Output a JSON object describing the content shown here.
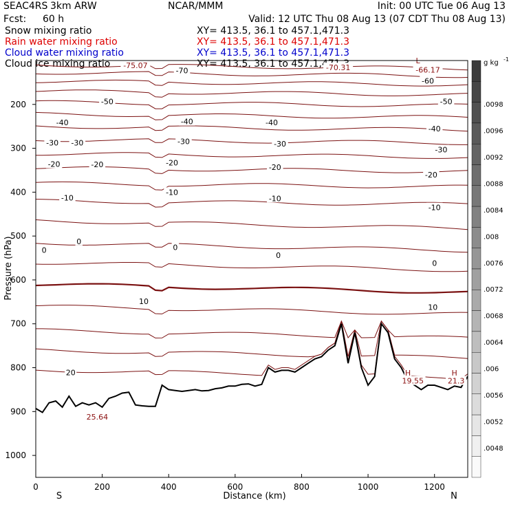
{
  "header": {
    "project": "SEAC4RS",
    "model": "3km ARW",
    "org": "NCAR/MMM",
    "init": "Init: 00 UTC Tue 06 Aug 13",
    "fcst_label": "Fcst:",
    "fcst_value": "60 h",
    "valid": "Valid: 12 UTC Thu 08 Aug 13 (07 CDT Thu 08 Aug 13)"
  },
  "fields": [
    {
      "label": "Snow mixing ratio",
      "xy": "XY= 413.5, 36.1 to 457.1,471.3",
      "color": "#000000"
    },
    {
      "label": "Rain water mixing ratio",
      "xy": "XY= 413.5, 36.1 to 457.1,471.3",
      "color": "#dd0000"
    },
    {
      "label": "Cloud water mixing ratio",
      "xy": "XY= 413.5, 36.1 to 457.1,471.3",
      "color": "#0000cc"
    },
    {
      "label": "Cloud ice mixing ratio",
      "xy": "XY= 413.5, 36.1 to 457.1,471.3",
      "color": "#000000"
    }
  ],
  "colors": {
    "contour": "#7a1010",
    "terrain": "#000000",
    "accent_red": "#dd0000",
    "accent_blue": "#0000cc"
  },
  "chart_data": {
    "type": "line",
    "title": "",
    "xlabel": "Distance (km)",
    "ylabel": "Pressure (hPa)",
    "xlim": [
      0,
      1300
    ],
    "ylim": [
      1050,
      100
    ],
    "x_ticks": [
      0,
      200,
      400,
      600,
      800,
      1000,
      1200
    ],
    "y_ticks": [
      200,
      300,
      400,
      500,
      600,
      700,
      800,
      900,
      1000
    ],
    "end_labels": {
      "left": "S",
      "right": "N"
    },
    "contour_labels": [
      {
        "text": "-75.07",
        "x": 300,
        "y": 111
      },
      {
        "text": "-70",
        "x": 440,
        "y": 123
      },
      {
        "text": "-70.31",
        "x": 910,
        "y": 116
      },
      {
        "text": "-66.17",
        "x": 1180,
        "y": 121
      },
      {
        "text": "-60",
        "x": 1180,
        "y": 146
      },
      {
        "text": "-50",
        "x": 215,
        "y": 193
      },
      {
        "text": "-50",
        "x": 1235,
        "y": 193
      },
      {
        "text": "-40",
        "x": 80,
        "y": 241
      },
      {
        "text": "-40",
        "x": 455,
        "y": 239
      },
      {
        "text": "-40",
        "x": 710,
        "y": 241
      },
      {
        "text": "-40",
        "x": 1200,
        "y": 255
      },
      {
        "text": "-30",
        "x": 50,
        "y": 287
      },
      {
        "text": "-30",
        "x": 125,
        "y": 287
      },
      {
        "text": "-30",
        "x": 445,
        "y": 284
      },
      {
        "text": "-30",
        "x": 735,
        "y": 290
      },
      {
        "text": "-30",
        "x": 1220,
        "y": 303
      },
      {
        "text": "-20",
        "x": 55,
        "y": 336
      },
      {
        "text": "-20",
        "x": 185,
        "y": 337
      },
      {
        "text": "-20",
        "x": 410,
        "y": 333
      },
      {
        "text": "-20",
        "x": 720,
        "y": 343
      },
      {
        "text": "-20",
        "x": 1190,
        "y": 360
      },
      {
        "text": "-10",
        "x": 95,
        "y": 413
      },
      {
        "text": "-10",
        "x": 410,
        "y": 400
      },
      {
        "text": "-10",
        "x": 720,
        "y": 414
      },
      {
        "text": "-10",
        "x": 1200,
        "y": 435
      },
      {
        "text": "0",
        "x": 25,
        "y": 532
      },
      {
        "text": "0",
        "x": 130,
        "y": 512
      },
      {
        "text": "0",
        "x": 420,
        "y": 526
      },
      {
        "text": "0",
        "x": 730,
        "y": 544
      },
      {
        "text": "0",
        "x": 1200,
        "y": 562
      },
      {
        "text": "10",
        "x": 325,
        "y": 649
      },
      {
        "text": "10",
        "x": 1195,
        "y": 662
      },
      {
        "text": "20",
        "x": 105,
        "y": 811
      },
      {
        "text": "25.64",
        "x": 185,
        "y": 912
      },
      {
        "text": "19.55",
        "x": 1135,
        "y": 830
      },
      {
        "text": "21.3",
        "x": 1265,
        "y": 830
      },
      {
        "text": "H",
        "x": 1120,
        "y": 812
      },
      {
        "text": "H",
        "x": 1260,
        "y": 812
      },
      {
        "text": "L",
        "x": 1150,
        "y": 100
      }
    ],
    "series": [
      {
        "x": [
          0,
          20,
          40,
          60,
          80,
          100,
          120,
          140,
          160,
          180,
          200,
          220,
          240,
          260,
          280,
          300,
          320,
          340,
          360,
          380,
          400,
          420,
          440,
          460,
          480,
          500,
          520,
          540,
          560,
          580,
          600,
          620,
          640,
          660,
          680,
          700,
          720,
          740,
          760,
          780,
          800,
          820,
          840,
          860,
          880,
          900,
          920,
          940,
          960,
          980,
          1000,
          1020,
          1040,
          1060,
          1080,
          1100,
          1120,
          1140,
          1160,
          1180,
          1200,
          1220,
          1240,
          1260,
          1280,
          1300
        ],
        "values": [
          893,
          902,
          880,
          876,
          890,
          865,
          888,
          880,
          885,
          880,
          890,
          870,
          865,
          858,
          856,
          885,
          887,
          888,
          888,
          840,
          850,
          852,
          854,
          852,
          850,
          853,
          852,
          848,
          846,
          842,
          842,
          838,
          837,
          842,
          838,
          800,
          810,
          806,
          806,
          810,
          800,
          790,
          780,
          775,
          760,
          750,
          700,
          790,
          720,
          800,
          840,
          820,
          700,
          720,
          780,
          800,
          830,
          840,
          850,
          840,
          840,
          845,
          850,
          842,
          845,
          820
        ]
      }
    ],
    "colorbar": {
      "unit": "g kg",
      "unit_exp": "-1",
      "ticks": [
        ".0098",
        ".0096",
        ".0092",
        ".0088",
        ".0084",
        ".008",
        ".0076",
        ".0072",
        ".0068",
        ".0064",
        ".006",
        ".0056",
        ".0052",
        ".0048"
      ]
    }
  }
}
